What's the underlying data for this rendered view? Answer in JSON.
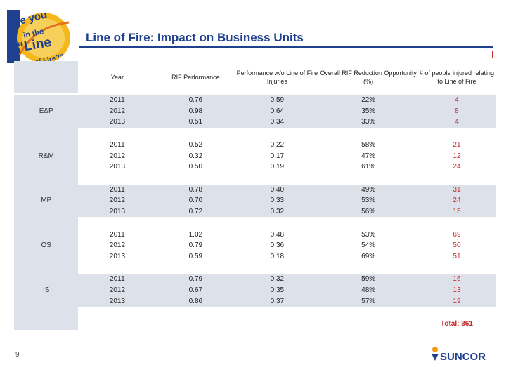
{
  "slide": {
    "title": "Line of Fire: Impact on Business Units",
    "page_number": "9",
    "logo_text": [
      "are you",
      "in the",
      "“Line",
      "of Fire?”"
    ],
    "brand": "SUNCOR"
  },
  "table": {
    "headers": {
      "unit": "",
      "year": "Year",
      "rif": "RIF Performance",
      "perf_lof": "Performance w/o Line of Fire Injuries",
      "opportunity": "Overall RIF Reduction Opportunity (%)",
      "injured": "# of people injured relating to Line of Fire"
    },
    "units": [
      {
        "name": "E&P",
        "rows": [
          {
            "year": "2011",
            "rif": "0.76",
            "perf": "0.59",
            "opp": "22%",
            "inj": "4"
          },
          {
            "year": "2012",
            "rif": "0.98",
            "perf": "0.64",
            "opp": "35%",
            "inj": "8"
          },
          {
            "year": "2013",
            "rif": "0.51",
            "perf": "0.34",
            "opp": "33%",
            "inj": "4"
          }
        ]
      },
      {
        "name": "R&M",
        "rows": [
          {
            "year": "2011",
            "rif": "0.52",
            "perf": "0.22",
            "opp": "58%",
            "inj": "21"
          },
          {
            "year": "2012",
            "rif": "0.32",
            "perf": "0.17",
            "opp": "47%",
            "inj": "12"
          },
          {
            "year": "2013",
            "rif": "0.50",
            "perf": "0.19",
            "opp": "61%",
            "inj": "24"
          }
        ]
      },
      {
        "name": "MP",
        "rows": [
          {
            "year": "2011",
            "rif": "0.78",
            "perf": "0.40",
            "opp": "49%",
            "inj": "31"
          },
          {
            "year": "2012",
            "rif": "0.70",
            "perf": "0.33",
            "opp": "53%",
            "inj": "24"
          },
          {
            "year": "2013",
            "rif": "0.72",
            "perf": "0.32",
            "opp": "56%",
            "inj": "15"
          }
        ]
      },
      {
        "name": "OS",
        "rows": [
          {
            "year": "2011",
            "rif": "1.02",
            "perf": "0.48",
            "opp": "53%",
            "inj": "69"
          },
          {
            "year": "2012",
            "rif": "0.79",
            "perf": "0.36",
            "opp": "54%",
            "inj": "50"
          },
          {
            "year": "2013",
            "rif": "0.59",
            "perf": "0.18",
            "opp": "69%",
            "inj": "51"
          }
        ]
      },
      {
        "name": "IS",
        "rows": [
          {
            "year": "2011",
            "rif": "0.79",
            "perf": "0.32",
            "opp": "59%",
            "inj": "16"
          },
          {
            "year": "2012",
            "rif": "0.67",
            "perf": "0.35",
            "opp": "48%",
            "inj": "13"
          },
          {
            "year": "2013",
            "rif": "0.86",
            "perf": "0.37",
            "opp": "57%",
            "inj": "19"
          }
        ]
      }
    ],
    "total": "Total: 361"
  },
  "colors": {
    "title": "#1f3f8f",
    "accent_red": "#c62828",
    "band": "#dde1e9",
    "brand_blue": "#1f3f8f",
    "brand_orange": "#f39c12"
  }
}
